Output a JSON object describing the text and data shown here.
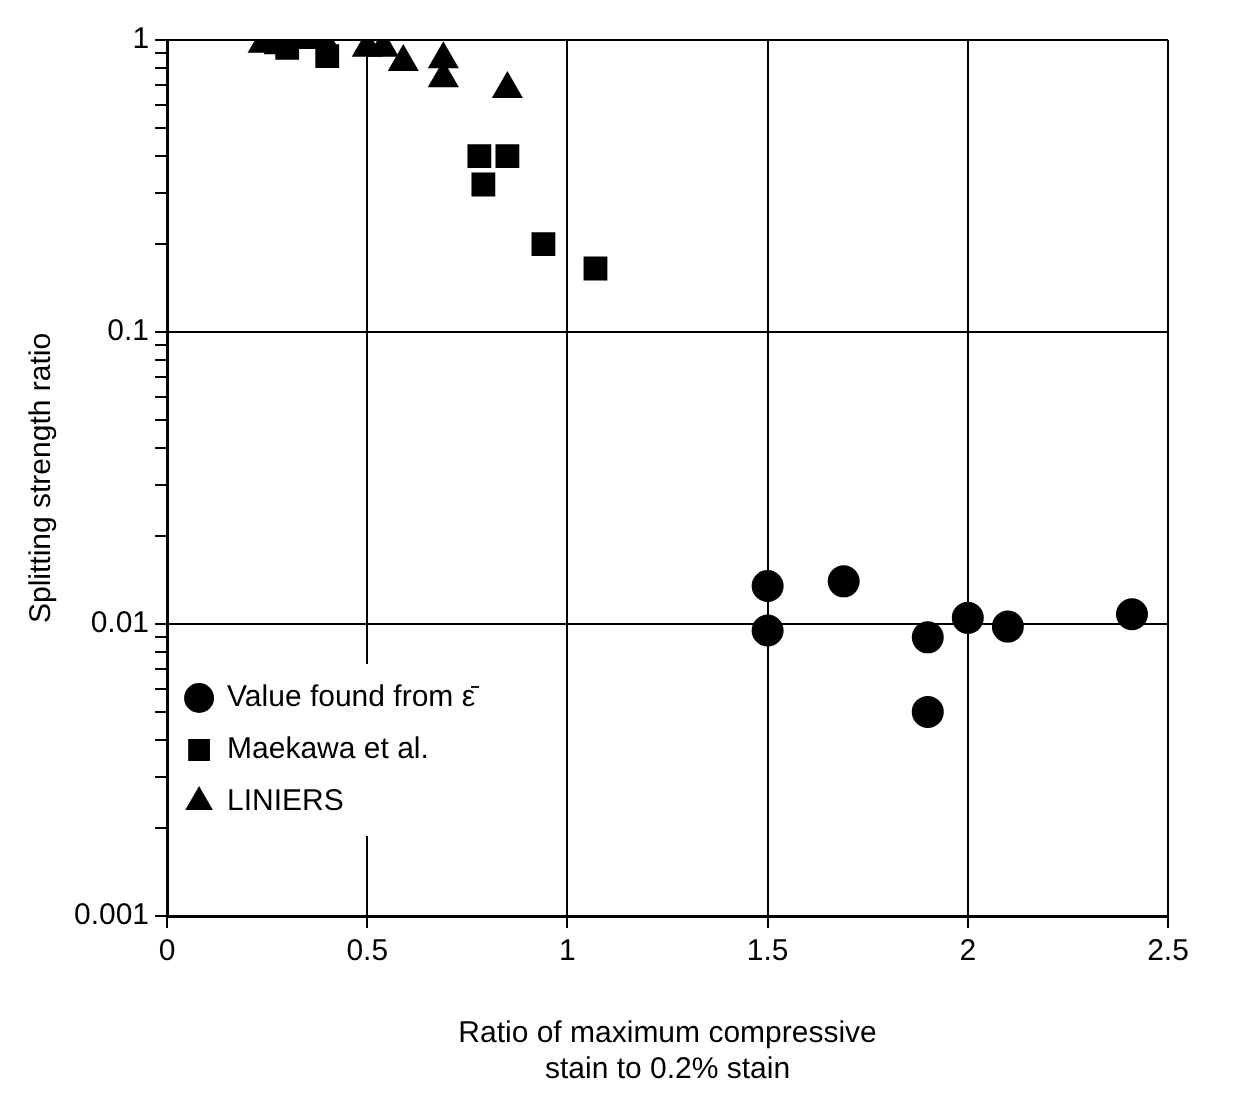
{
  "chart_data": {
    "type": "scatter",
    "xlabel": "Ratio of maximum compressive\nstain to 0.2% stain",
    "ylabel": "Splitting strength ratio",
    "xlim": [
      0,
      2.5
    ],
    "xticks": [
      0,
      0.5,
      1,
      1.5,
      2,
      2.5
    ],
    "ylim": [
      0.001,
      1
    ],
    "log": "y",
    "yticks": [
      0.001,
      {
        "value": 0.002,
        "label": null
      },
      {
        "value": 0.003,
        "label": null
      },
      {
        "value": 0.004,
        "label": null
      },
      {
        "value": 0.005,
        "label": null
      },
      {
        "value": 0.006,
        "label": null
      },
      {
        "value": 0.007,
        "label": null
      },
      {
        "value": 0.008,
        "label": null
      },
      {
        "value": 0.009,
        "label": null
      },
      0.01,
      {
        "value": 0.02,
        "label": null
      },
      {
        "value": 0.03,
        "label": null
      },
      {
        "value": 0.04,
        "label": null
      },
      {
        "value": 0.05,
        "label": null
      },
      {
        "value": 0.06,
        "label": null
      },
      {
        "value": 0.07,
        "label": null
      },
      {
        "value": 0.08,
        "label": null
      },
      {
        "value": 0.09,
        "label": null
      },
      0.1,
      {
        "value": 0.2,
        "label": null
      },
      {
        "value": 0.3,
        "label": null
      },
      {
        "value": 0.4,
        "label": null
      },
      {
        "value": 0.5,
        "label": null
      },
      {
        "value": 0.6,
        "label": null
      },
      {
        "value": 0.7,
        "label": null
      },
      {
        "value": 0.8,
        "label": null
      },
      {
        "value": 0.9,
        "label": null
      },
      1
    ],
    "grid": true,
    "legend": "bottom left",
    "series": [
      {
        "name": "Value found from ε̄",
        "color": "#000000",
        "marker": "circle",
        "x": [
          1.5,
          1.5,
          1.69,
          1.9,
          1.9,
          2.0,
          2.1,
          2.41
        ],
        "values": [
          0.0135,
          0.0095,
          0.014,
          0.009,
          0.005,
          0.0105,
          0.0098,
          0.0108
        ]
      },
      {
        "name": "Maekawa et al.",
        "color": "#000000",
        "marker": "square",
        "x": [
          0.3,
          0.4,
          0.78,
          0.79,
          0.85,
          0.94,
          1.07
        ],
        "values": [
          0.94,
          0.88,
          0.4,
          0.32,
          0.4,
          0.2,
          0.165
        ]
      },
      {
        "name": "LINIERS",
        "color": "#000000",
        "marker": "triangle",
        "x": [
          0.24,
          0.28,
          0.34,
          0.39,
          0.5,
          0.54,
          0.59,
          0.69,
          0.69,
          0.85
        ],
        "values": [
          0.97,
          0.96,
          1.0,
          1.0,
          0.94,
          0.94,
          0.84,
          0.86,
          0.74,
          0.68
        ]
      }
    ]
  }
}
